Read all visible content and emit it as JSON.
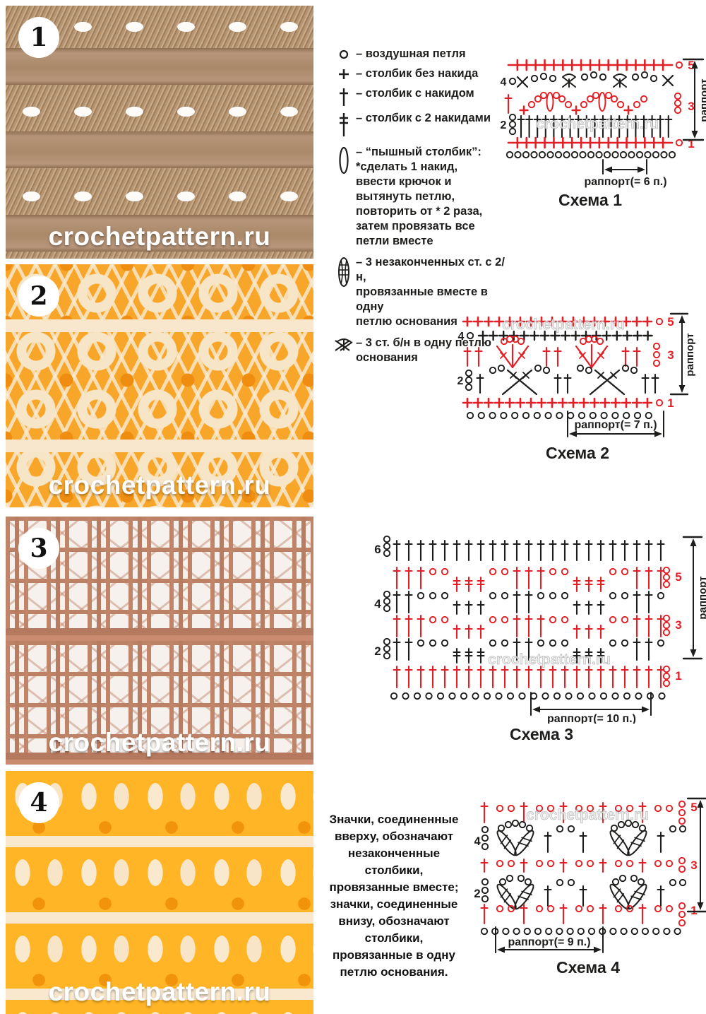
{
  "watermark": "crochetpattern.ru",
  "colors": {
    "red": "#e31e24",
    "black": "#1d1d1b"
  },
  "photos": [
    {
      "number": "1"
    },
    {
      "number": "2"
    },
    {
      "number": "3"
    },
    {
      "number": "4"
    }
  ],
  "legend": {
    "items": [
      {
        "icon": "chain",
        "text": "– воздушная петля"
      },
      {
        "icon": "single-crochet",
        "text": "– столбик без накида"
      },
      {
        "icon": "double-crochet",
        "text": "– столбик с накидом"
      },
      {
        "icon": "treble-crochet",
        "text": "– столбик с 2 накидами"
      },
      {
        "icon": "puff-stitch",
        "text": "– “пышный столбик”:\n*сделать 1 накид,\nввести крючок и\nвытянуть петлю,\nповторить от * 2 раза,\nзатем провязать все\nпетли вместе"
      },
      {
        "icon": "cluster-3tr",
        "text": "– 3 незаконченных ст. с 2/н,\nпровязанные вместе в одну\nпетлю основания"
      },
      {
        "icon": "3sc-in-one-loop",
        "text": "– 3 ст. б/н в одну петлю\nоснования"
      }
    ]
  },
  "note": "Значки, соединенные\nвверху, обозначают\nнезаконченные\nстолбики,\nпровязанные вместе;\nзначки, соединенные\nвнизу, обозначают\nстолбики,\nпровязанные в одну\nпетлю основания.",
  "schemas": [
    {
      "title": "Схема 1",
      "rapport_h": "раппорт(= 6 п.)",
      "rapport_v": "раппорт",
      "row_numbers": {
        "r1": "1",
        "r2": "2",
        "r3": "3",
        "r4": "4",
        "r5": "5"
      }
    },
    {
      "title": "Схема 2",
      "rapport_h": "раппорт(= 7 п.)",
      "rapport_v": "раппорт",
      "row_numbers": {
        "r1": "1",
        "r2": "2",
        "r3": "3",
        "r4": "4",
        "r5": "5"
      }
    },
    {
      "title": "Схема 3",
      "rapport_h": "раппорт(= 10 п.)",
      "rapport_v": "раппорт",
      "row_numbers": {
        "r1": "1",
        "r2": "2",
        "r3": "3",
        "r4": "4",
        "r5": "5",
        "r6": "6"
      }
    },
    {
      "title": "Схема 4",
      "rapport_h": "раппорт(= 9 п.)",
      "rapport_v": "раппорт",
      "row_numbers": {
        "r1": "1",
        "r2": "2",
        "r3": "3",
        "r4": "4",
        "r5": "5"
      }
    }
  ]
}
